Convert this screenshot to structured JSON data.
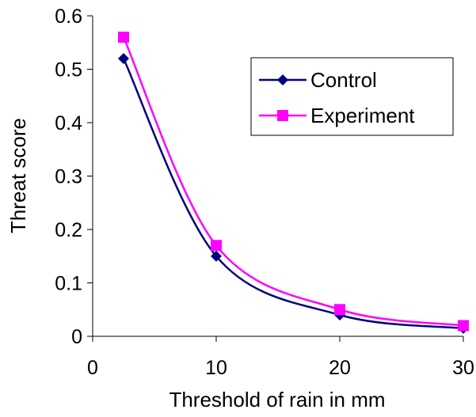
{
  "chart_data": {
    "type": "line",
    "title": "",
    "xlabel": "Threshold of rain in mm",
    "ylabel": "Threat score",
    "xlim": [
      0,
      30
    ],
    "ylim": [
      0,
      0.6
    ],
    "x_ticks": [
      "0",
      "10",
      "20",
      "30"
    ],
    "y_ticks": [
      "0",
      "0.1",
      "0.2",
      "0.3",
      "0.4",
      "0.5",
      "0.6"
    ],
    "smooth": true,
    "grid": false,
    "legend": "inside-right",
    "series": [
      {
        "name": "Control",
        "color": "#000080",
        "marker": "diamond",
        "points": [
          [
            2.5,
            0.52
          ],
          [
            10,
            0.15
          ],
          [
            20,
            0.04
          ],
          [
            30,
            0.015
          ]
        ]
      },
      {
        "name": "Experiment",
        "color": "#ff00ff",
        "marker": "square",
        "points": [
          [
            2.5,
            0.56
          ],
          [
            10,
            0.17
          ],
          [
            20,
            0.05
          ],
          [
            30,
            0.02
          ]
        ]
      }
    ]
  }
}
